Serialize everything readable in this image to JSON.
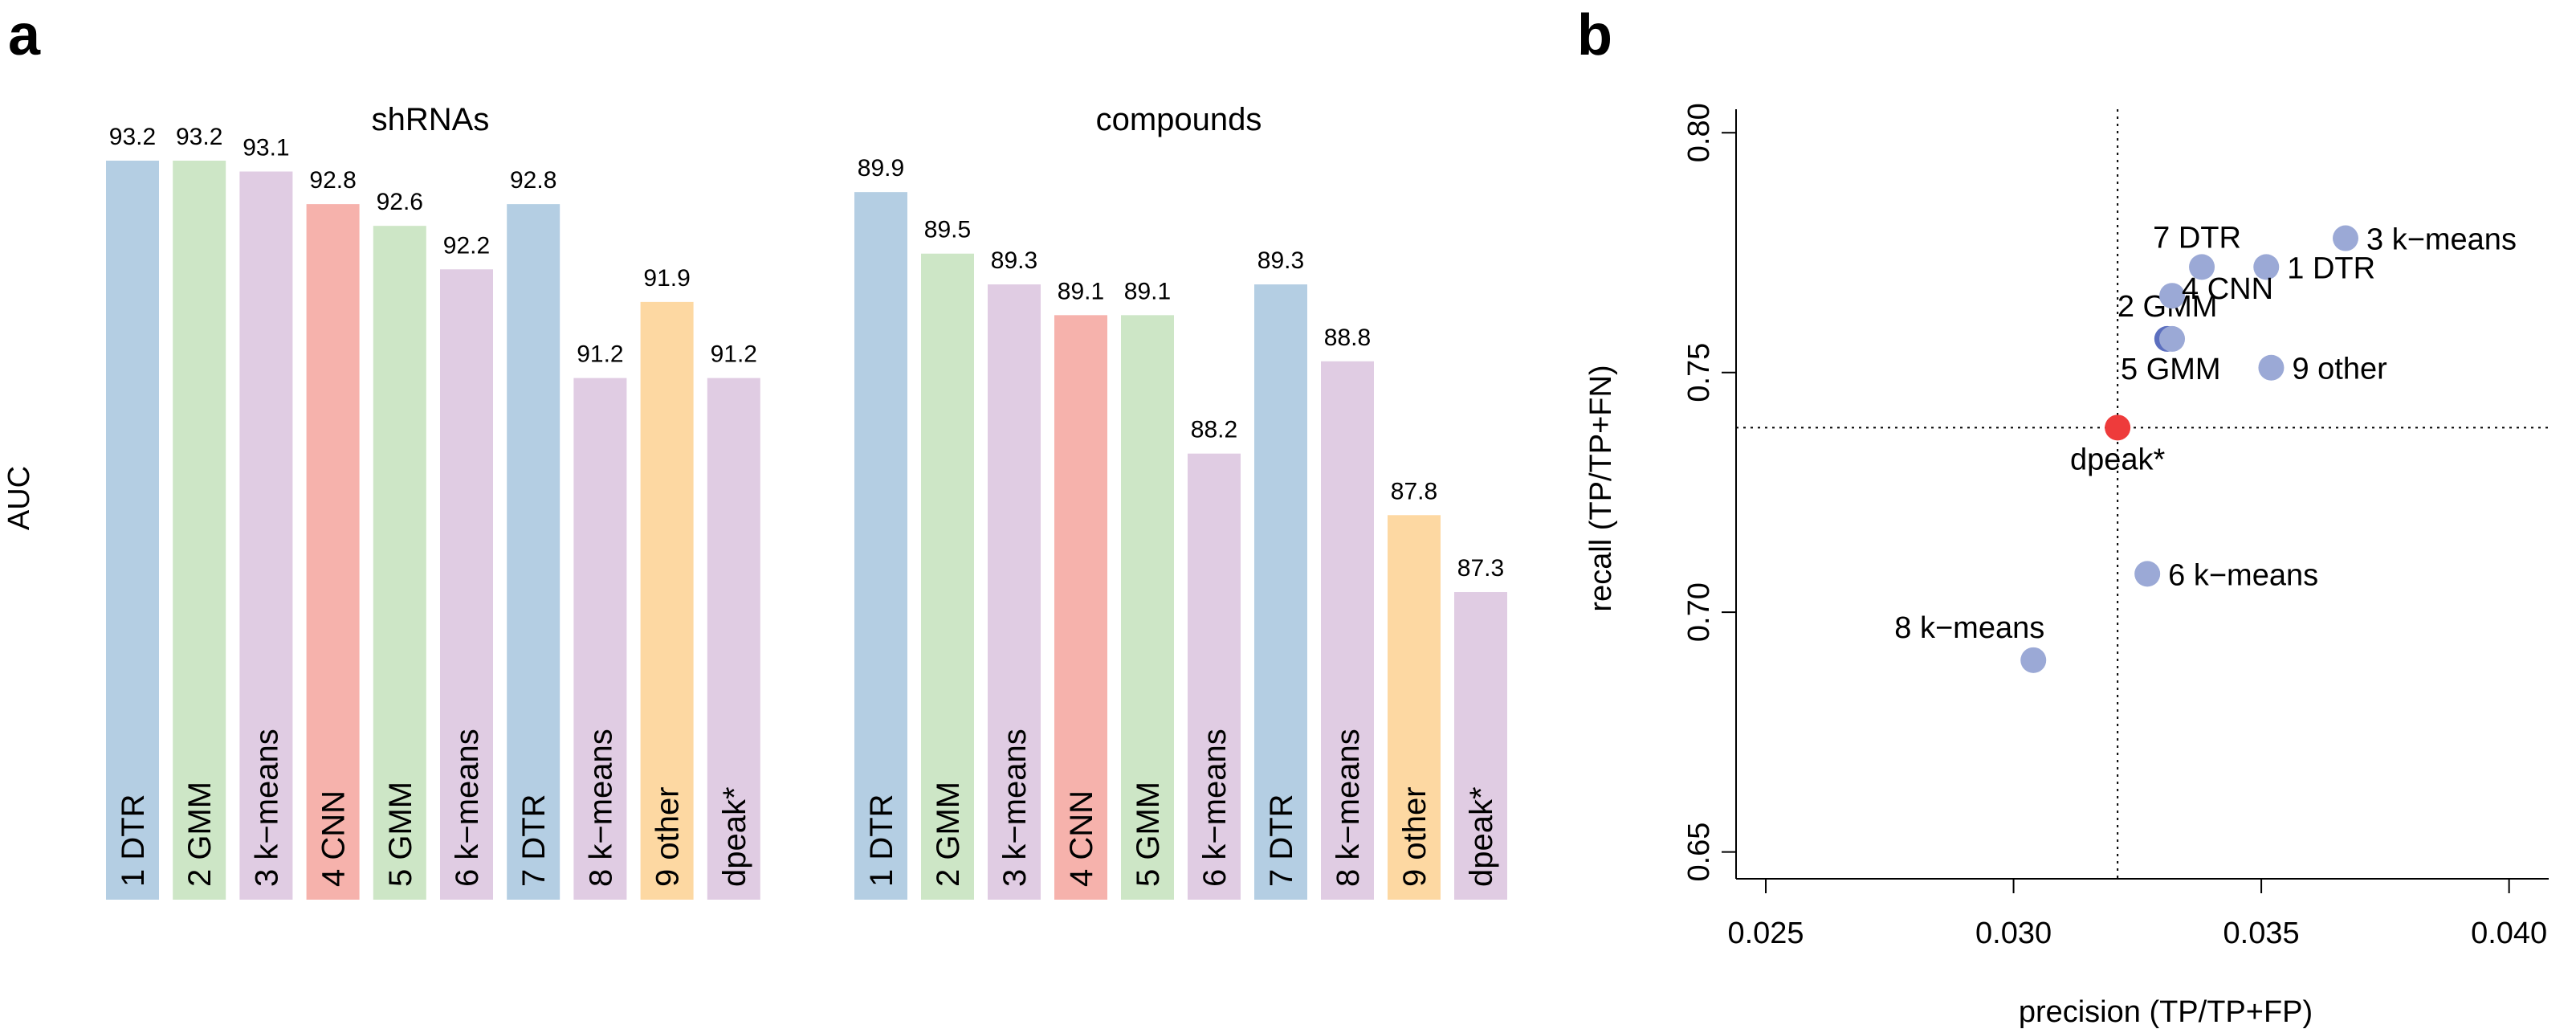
{
  "panels": {
    "a": "a",
    "b": "b"
  },
  "colors": {
    "DTR": "#b4cee3",
    "GMM": "#cde6c6",
    "k-means": "#e0cce3",
    "CNN": "#f6b2ac",
    "other": "#fdd8a2",
    "dpeak*": "#e0cce3",
    "point": "#9ba9d6",
    "point_dark": "#5c6fbf",
    "point_dpeak": "#ee3b3b"
  },
  "chart_data": [
    {
      "type": "bar",
      "title": "shRNAs",
      "ylabel": "AUC",
      "categories": [
        "1 DTR",
        "2 GMM",
        "3 k−means",
        "4 CNN",
        "5 GMM",
        "6 k−means",
        "7 DTR",
        "8 k−means",
        "9 other",
        "dpeak*"
      ],
      "method_types": [
        "DTR",
        "GMM",
        "k-means",
        "CNN",
        "GMM",
        "k-means",
        "DTR",
        "k-means",
        "other",
        "dpeak*"
      ],
      "values": [
        93.2,
        93.2,
        93.1,
        92.8,
        92.6,
        92.2,
        92.8,
        91.2,
        91.9,
        91.2
      ],
      "value_labels": [
        "93.2",
        "93.2",
        "93.1",
        "92.8",
        "92.6",
        "92.2",
        "92.8",
        "91.2",
        "91.9",
        "91.2"
      ],
      "ylim": [
        86.4,
        93.2
      ]
    },
    {
      "type": "bar",
      "title": "compounds",
      "ylabel": "AUC",
      "categories": [
        "1 DTR",
        "2 GMM",
        "3 k−means",
        "4 CNN",
        "5 GMM",
        "6 k−means",
        "7 DTR",
        "8 k−means",
        "9 other",
        "dpeak*"
      ],
      "method_types": [
        "DTR",
        "GMM",
        "k-means",
        "CNN",
        "GMM",
        "k-means",
        "DTR",
        "k-means",
        "other",
        "dpeak*"
      ],
      "values": [
        89.9,
        89.5,
        89.3,
        89.1,
        89.1,
        88.2,
        89.3,
        88.8,
        87.8,
        87.3
      ],
      "value_labels": [
        "89.9",
        "89.5",
        "89.3",
        "89.1",
        "89.1",
        "88.2",
        "89.3",
        "88.8",
        "87.8",
        "87.3"
      ],
      "ylim": [
        85.3,
        90.0
      ]
    },
    {
      "type": "scatter",
      "xlabel": "precision (TP/TP+FP)",
      "ylabel": "recall (TP/TP+FN)",
      "xlim": [
        0.0244,
        0.0408
      ],
      "ylim": [
        0.6444,
        0.8049
      ],
      "xticks": [
        "0.025",
        "0.030",
        "0.035",
        "0.040"
      ],
      "xtick_values": [
        0.025,
        0.03,
        0.035,
        0.04
      ],
      "yticks": [
        "0.65",
        "0.70",
        "0.75",
        "0.80"
      ],
      "ytick_values": [
        0.65,
        0.7,
        0.75,
        0.8
      ],
      "reference_lines": {
        "x": 0.0321,
        "y": 0.7385
      },
      "points": [
        {
          "label": "1 DTR",
          "x": 0.0351,
          "y": 0.772,
          "anchor": "right"
        },
        {
          "label": "2 GMM",
          "x": 0.0331,
          "y": 0.757,
          "anchor": "above-left"
        },
        {
          "label": "3 k−means",
          "x": 0.0367,
          "y": 0.778,
          "anchor": "right"
        },
        {
          "label": "4 CNN",
          "x": 0.0332,
          "y": 0.766,
          "anchor": "right"
        },
        {
          "label": "5 GMM",
          "x": 0.0332,
          "y": 0.757,
          "anchor": "below"
        },
        {
          "label": "6 k−means",
          "x": 0.0327,
          "y": 0.708,
          "anchor": "right"
        },
        {
          "label": "7 DTR",
          "x": 0.0338,
          "y": 0.772,
          "anchor": "above"
        },
        {
          "label": "8 k−means",
          "x": 0.0304,
          "y": 0.69,
          "anchor": "above-left"
        },
        {
          "label": "9 other",
          "x": 0.0352,
          "y": 0.751,
          "anchor": "right"
        },
        {
          "label": "dpeak*",
          "x": 0.0321,
          "y": 0.7385,
          "anchor": "below"
        }
      ]
    }
  ]
}
